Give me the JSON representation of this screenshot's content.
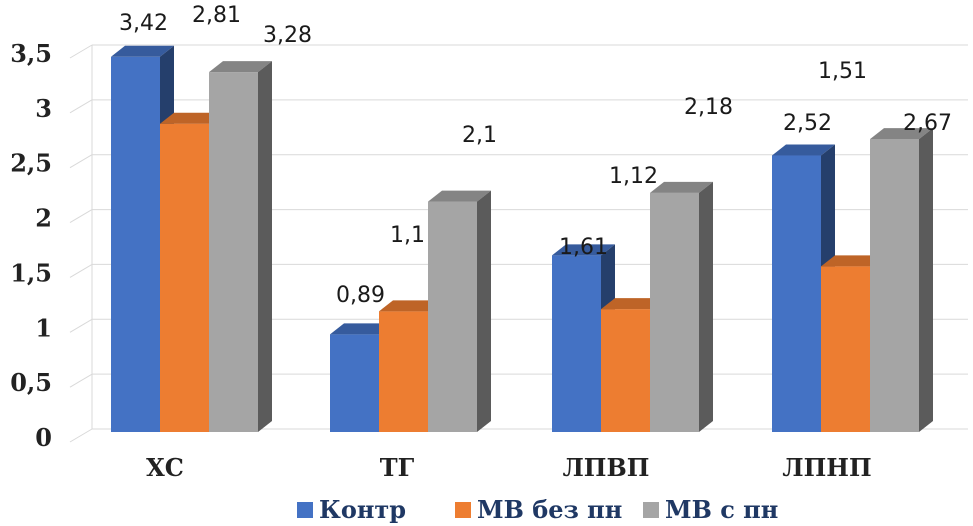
{
  "chart_data": {
    "type": "bar",
    "style": "3d-clustered-column",
    "categories": [
      "ХС",
      "ТГ",
      "ЛПВП",
      "ЛПНП"
    ],
    "series": [
      {
        "name": "Контр",
        "color": "#4472c4",
        "values": [
          3.42,
          0.89,
          1.61,
          2.52
        ]
      },
      {
        "name": "МВ без пн",
        "color": "#ed7d31",
        "values": [
          2.81,
          1.1,
          1.12,
          1.51
        ]
      },
      {
        "name": "МВ с пн",
        "color": "#a5a5a5",
        "values": [
          3.28,
          2.1,
          2.18,
          2.67
        ]
      }
    ],
    "data_labels": [
      [
        "3,42",
        "0,89",
        "1,61",
        "2,52"
      ],
      [
        "2,81",
        "1,1",
        "1,12",
        "1,51"
      ],
      [
        "3,28",
        "2,1",
        "2,18",
        "2,67"
      ]
    ],
    "ylim": [
      0,
      3.5
    ],
    "yticks": [
      "0",
      "0,5",
      "1",
      "1,5",
      "2",
      "2,5",
      "3",
      "3,5"
    ],
    "grid": true,
    "legend_position": "bottom"
  }
}
